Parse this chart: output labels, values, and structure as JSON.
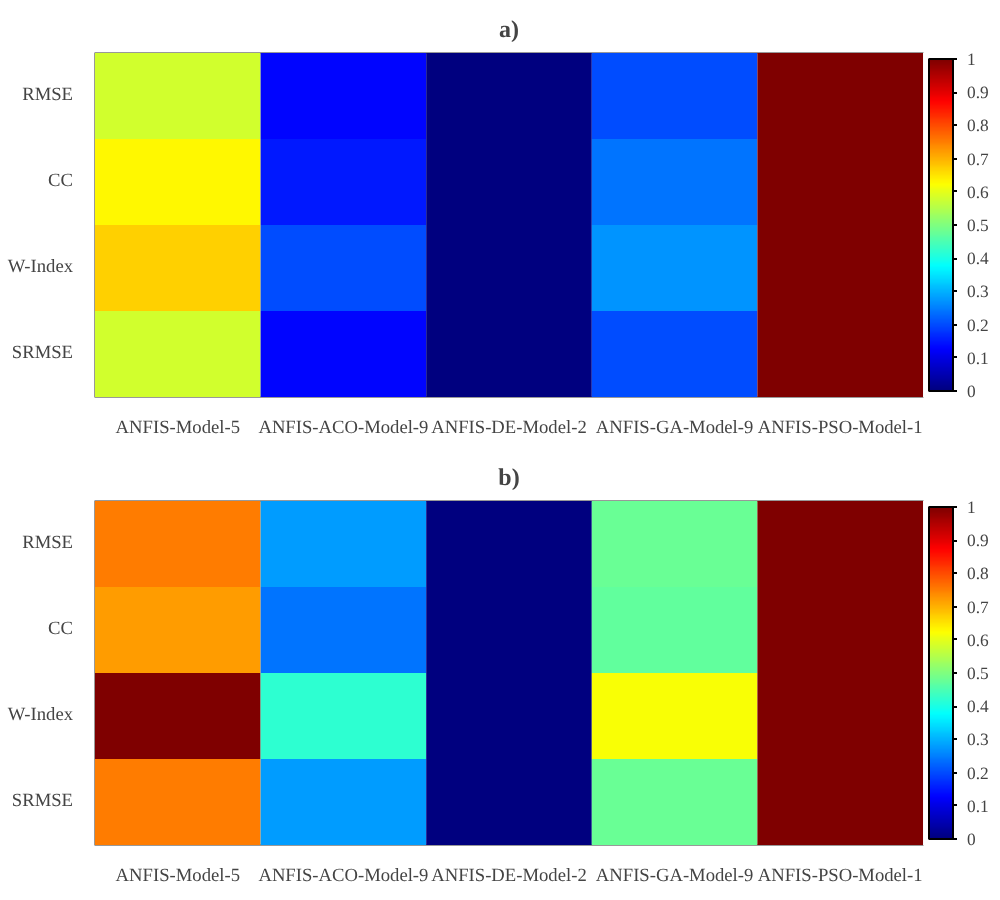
{
  "chart_data": [
    {
      "type": "heatmap",
      "title": "a)",
      "categories": [
        "ANFIS-Model-5",
        "ANFIS-ACO-Model-9",
        "ANFIS-DE-Model-2",
        "ANFIS-GA-Model-9",
        "ANFIS-PSO-Model-1"
      ],
      "y_categories": [
        "RMSE",
        "CC",
        "W-Index",
        "SRMSE"
      ],
      "cells": [
        [
          0.58,
          0.13,
          0.0,
          0.2,
          1.0
        ],
        [
          0.63,
          0.15,
          0.0,
          0.24,
          1.0
        ],
        [
          0.67,
          0.2,
          0.0,
          0.27,
          1.0
        ],
        [
          0.58,
          0.13,
          0.0,
          0.2,
          1.0
        ]
      ],
      "clim": [
        0,
        1
      ],
      "cticks": [
        0,
        0.1,
        0.2,
        0.3,
        0.4,
        0.5,
        0.6,
        0.7,
        0.8,
        0.9,
        1
      ]
    },
    {
      "type": "heatmap",
      "title": "b)",
      "categories": [
        "ANFIS-Model-5",
        "ANFIS-ACO-Model-9",
        "ANFIS-DE-Model-2",
        "ANFIS-GA-Model-9",
        "ANFIS-PSO-Model-1"
      ],
      "y_categories": [
        "RMSE",
        "CC",
        "W-Index",
        "SRMSE"
      ],
      "cells": [
        [
          0.75,
          0.28,
          0.0,
          0.48,
          1.0
        ],
        [
          0.72,
          0.24,
          0.0,
          0.47,
          1.0
        ],
        [
          1.0,
          0.42,
          0.0,
          0.62,
          1.0
        ],
        [
          0.75,
          0.28,
          0.0,
          0.48,
          1.0
        ]
      ],
      "clim": [
        0,
        1
      ],
      "cticks": [
        0,
        0.1,
        0.2,
        0.3,
        0.4,
        0.5,
        0.6,
        0.7,
        0.8,
        0.9,
        1
      ]
    }
  ]
}
